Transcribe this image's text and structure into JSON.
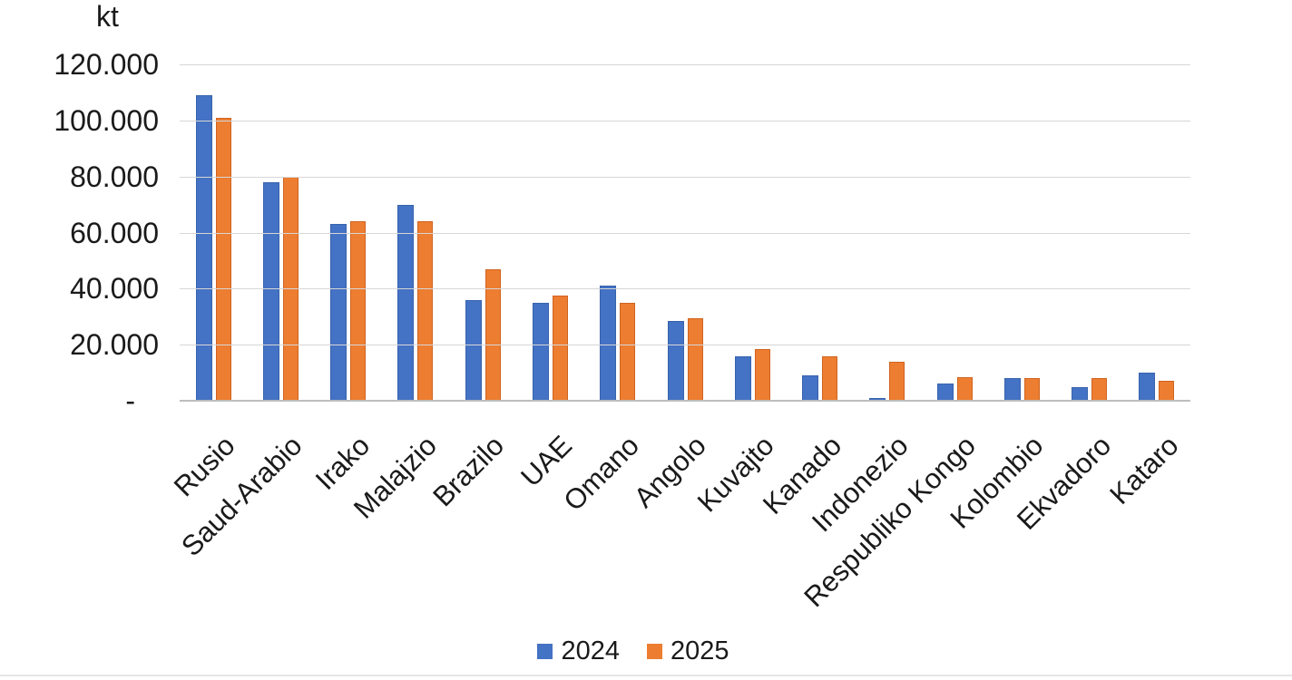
{
  "chart_data": {
    "type": "bar",
    "title": "",
    "unit_label": "kt",
    "categories": [
      "Rusio",
      "Saud-Arabio",
      "Irako",
      "Malajzio",
      "Brazilo",
      "UAE",
      "Omano",
      "Angolo",
      "Kuvajto",
      "Kanado",
      "Indonezio",
      "Respubliko Kongo",
      "Kolombio",
      "Ekvadoro",
      "Kataro"
    ],
    "series": [
      {
        "name": "2024",
        "color": "#4472C4",
        "values": [
          109000,
          78000,
          63000,
          70000,
          36000,
          35000,
          41000,
          28500,
          16000,
          9000,
          1000,
          6000,
          8000,
          5000,
          10000
        ]
      },
      {
        "name": "2025",
        "color": "#ED7D31",
        "values": [
          101000,
          80000,
          64000,
          64000,
          47000,
          37500,
          35000,
          29500,
          18500,
          16000,
          14000,
          8500,
          8000,
          8000,
          7000
        ]
      }
    ],
    "ylim": [
      0,
      120000
    ],
    "ytick_step": 20000,
    "yticks": [
      {
        "value": 120000,
        "label": "120.000"
      },
      {
        "value": 100000,
        "label": "100.000"
      },
      {
        "value": 80000,
        "label": "80.000"
      },
      {
        "value": 60000,
        "label": "60.000"
      },
      {
        "value": 40000,
        "label": "40.000"
      },
      {
        "value": 20000,
        "label": "20.000"
      },
      {
        "value": 0,
        "label": "-"
      }
    ],
    "grid": true,
    "legend_position": "bottom"
  }
}
